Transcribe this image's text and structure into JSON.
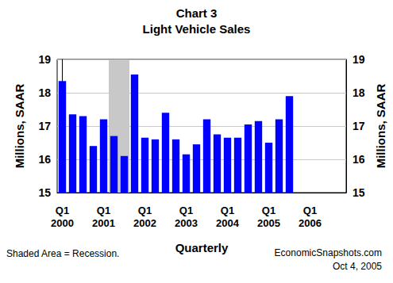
{
  "chart_data": {
    "type": "bar",
    "title": "Chart 3",
    "subtitle": "Light Vehicle Sales",
    "xlabel": "Quarterly",
    "ylabel": "Millions, SAAR",
    "y2label": "Millions, SAAR",
    "annotations": [
      "Shaded Area = Recession.",
      "EconomicSnapshots.com",
      "Oct 4, 2005"
    ],
    "categories": [
      "Q1\n2000",
      null,
      null,
      null,
      "Q1\n2001",
      null,
      null,
      null,
      "Q1\n2002",
      null,
      null,
      null,
      "Q1\n2003",
      null,
      null,
      null,
      "Q1\n2004",
      null,
      null,
      null,
      "Q1\n2005",
      null,
      null,
      null,
      "Q1\n2006",
      null,
      null,
      null
    ],
    "values": [
      18.35,
      17.35,
      17.3,
      16.4,
      17.2,
      16.7,
      16.1,
      18.55,
      16.65,
      16.6,
      17.4,
      16.6,
      16.15,
      16.45,
      17.2,
      16.75,
      16.65,
      16.65,
      17.05,
      17.15,
      16.5,
      17.2,
      17.9,
      null,
      null,
      null,
      null,
      null
    ],
    "recession": [
      false,
      false,
      false,
      false,
      false,
      true,
      true,
      false,
      false,
      false,
      false,
      false,
      false,
      false,
      false,
      false,
      false,
      false,
      false,
      false,
      false,
      false,
      false,
      false,
      false,
      false,
      false,
      false
    ],
    "color": "#0000ff",
    "ylim": [
      15,
      19
    ],
    "yticks": [
      15,
      16,
      17,
      18,
      19
    ],
    "y2lim": [
      15,
      19
    ],
    "y2ticks": [
      15,
      16,
      17,
      18,
      19
    ],
    "grid": true
  }
}
